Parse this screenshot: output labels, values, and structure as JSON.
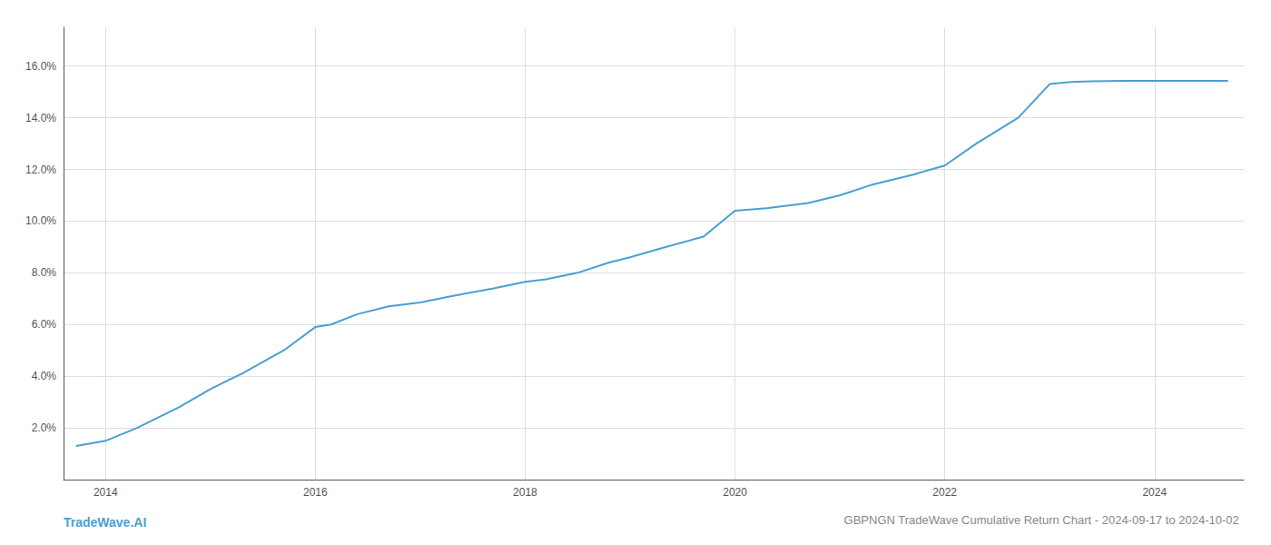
{
  "chart_data": {
    "type": "line",
    "title": "GBPNGN TradeWave Cumulative Return Chart - 2024-09-17 to 2024-10-02",
    "annotations": [
      "TradeWave.AI"
    ],
    "color": "#4a9fd4",
    "x": [
      2013.72,
      2014.0,
      2014.3,
      2014.7,
      2015.0,
      2015.3,
      2015.7,
      2016.0,
      2016.15,
      2016.4,
      2016.7,
      2017.0,
      2017.3,
      2017.7,
      2018.0,
      2018.2,
      2018.5,
      2018.8,
      2019.0,
      2019.3,
      2019.7,
      2020.0,
      2020.3,
      2020.7,
      2021.0,
      2021.3,
      2021.7,
      2022.0,
      2022.3,
      2022.7,
      2023.0,
      2023.2,
      2023.4,
      2023.7,
      2024.0,
      2024.3,
      2024.7
    ],
    "values": [
      1.3,
      1.5,
      2.0,
      2.8,
      3.5,
      4.1,
      5.0,
      5.9,
      6.0,
      6.4,
      6.7,
      6.85,
      7.1,
      7.4,
      7.65,
      7.75,
      8.0,
      8.4,
      8.6,
      8.95,
      9.4,
      10.4,
      10.5,
      10.7,
      11.0,
      11.4,
      11.8,
      12.15,
      13.0,
      14.0,
      15.3,
      15.38,
      15.41,
      15.43,
      15.43,
      15.43,
      15.43
    ],
    "xlim": [
      2013.6,
      2024.85
    ],
    "xticks": [
      2014,
      2016,
      2018,
      2020,
      2022,
      2024
    ],
    "ylim": [
      0.0,
      17.5
    ],
    "yticks": [
      {
        "value": 2.0,
        "label": "2.0%"
      },
      {
        "value": 4.0,
        "label": "4.0%"
      },
      {
        "value": 6.0,
        "label": "6.0%"
      },
      {
        "value": 8.0,
        "label": "8.0%"
      },
      {
        "value": 10.0,
        "label": "10.0%"
      },
      {
        "value": 12.0,
        "label": "12.0%"
      },
      {
        "value": 14.0,
        "label": "14.0%"
      },
      {
        "value": 16.0,
        "label": "16.0%"
      }
    ],
    "grid": true
  }
}
